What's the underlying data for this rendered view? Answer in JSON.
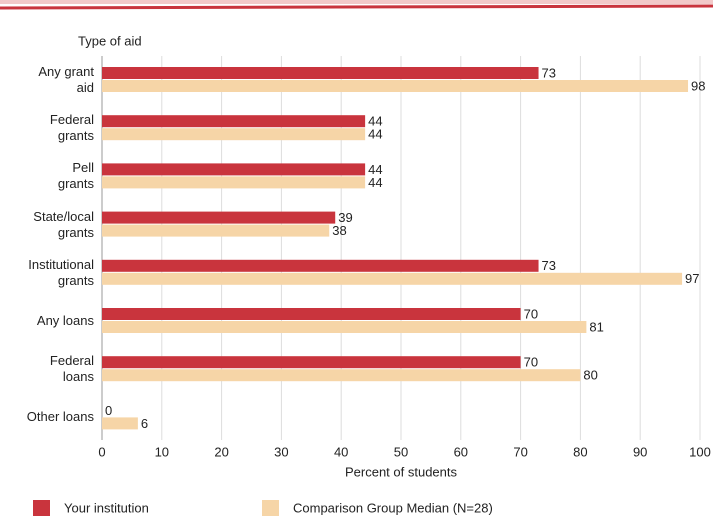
{
  "chart_data": {
    "type": "hbar",
    "y_axis_label": "Type of aid",
    "x_axis_label": "Percent of students",
    "categories": [
      "Any grant\naid",
      "Federal\ngrants",
      "Pell\ngrants",
      "State/local\ngrants",
      "Institutional\ngrants",
      "Any loans",
      "Federal\nloans",
      "Other loans"
    ],
    "series": [
      {
        "name": "Your institution",
        "color": "#c9343d",
        "values": [
          73,
          44,
          44,
          39,
          73,
          70,
          70,
          0
        ]
      },
      {
        "name": "Comparison Group Median (N=28)",
        "color": "#f6d5a7",
        "values": [
          98,
          44,
          44,
          38,
          97,
          81,
          80,
          6
        ]
      }
    ],
    "xlim": [
      0,
      100
    ],
    "xticks": [
      0,
      10,
      20,
      30,
      40,
      50,
      60,
      70,
      80,
      90,
      100
    ],
    "grid": true
  }
}
